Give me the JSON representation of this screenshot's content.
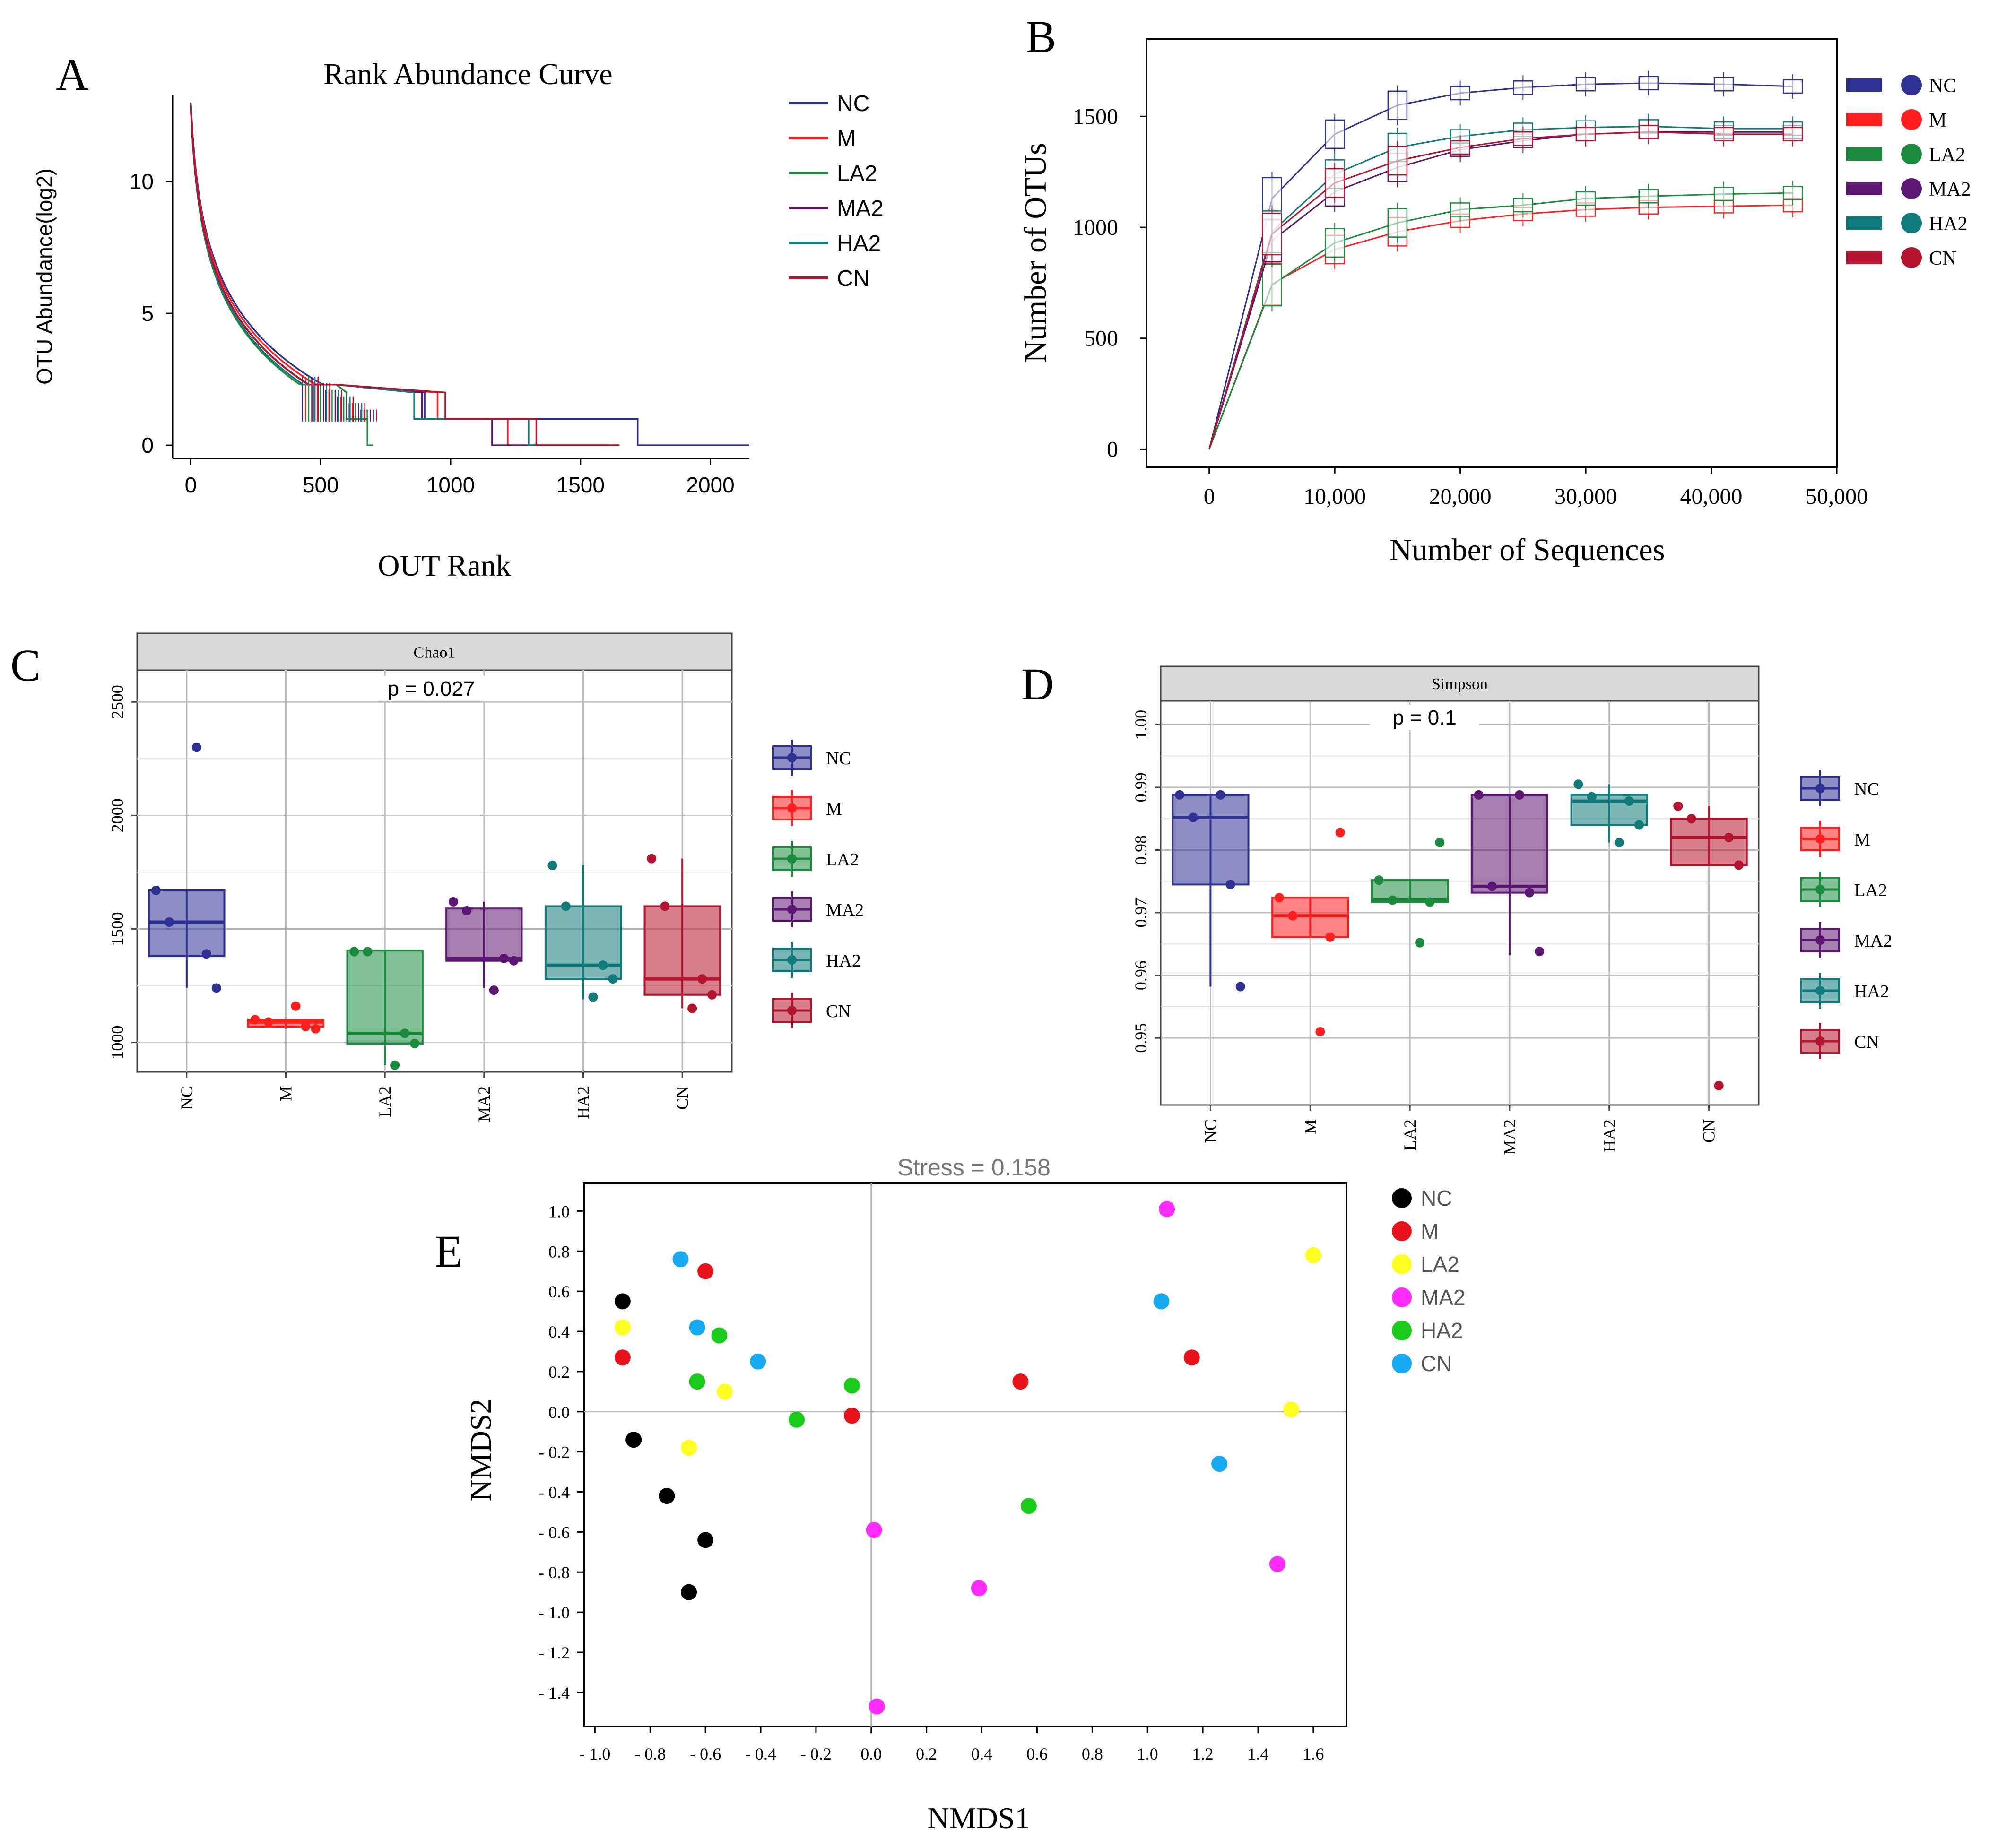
{
  "colors": {
    "NC": "#2e3192",
    "M": "#ff1f1f",
    "LA2": "#1a8a3c",
    "MA2": "#5a1670",
    "HA2": "#117a7a",
    "CN": "#b5142e",
    "e_NC": "#000000",
    "e_M": "#e8121b",
    "e_LA2": "#ffff22",
    "e_MA2": "#ff2cff",
    "e_HA2": "#19cc19",
    "e_CN": "#17aaf0"
  },
  "chart_data": [
    {
      "panel": "A",
      "type": "line",
      "title": "Rank Abundance Curve",
      "xlabel": "OUT Rank",
      "ylabel": "OTU Abundance(log2)",
      "xlim": [
        -70,
        2150
      ],
      "ylim": [
        -0.5,
        13.3
      ],
      "xticks": [
        "0",
        "500",
        "1000",
        "1500",
        "2000"
      ],
      "yticks": [
        "0",
        "5",
        "10"
      ],
      "legend": [
        "NC",
        "M",
        "LA2",
        "MA2",
        "HA2",
        "CN"
      ],
      "legend_position": "right",
      "series": [
        {
          "name": "NC",
          "end_rank": 2150,
          "step_ranks": [
            1720,
            1160,
            900
          ],
          "decay": 140
        },
        {
          "name": "M",
          "end_rank": 1650,
          "step_ranks": [
            1220,
            950
          ],
          "decay": 135
        },
        {
          "name": "LA2",
          "end_rank": 700,
          "step_ranks": [
            680,
            600
          ],
          "decay": 120
        },
        {
          "name": "MA2",
          "end_rank": 1600,
          "step_ranks": [
            1160,
            890
          ],
          "decay": 132
        },
        {
          "name": "HA2",
          "end_rank": 1330,
          "step_ranks": [
            1300,
            860
          ],
          "decay": 128
        },
        {
          "name": "CN",
          "end_rank": 1650,
          "step_ranks": [
            1330,
            980
          ],
          "decay": 136
        }
      ]
    },
    {
      "panel": "B",
      "type": "line",
      "title": "",
      "xlabel": "Number of Sequences",
      "ylabel": "Number of OTUs",
      "xlim": [
        -5000,
        50000
      ],
      "ylim": [
        -80,
        1850
      ],
      "xticks": [
        "0",
        "10,000",
        "20,000",
        "30,000",
        "40,000",
        "50,000"
      ],
      "yticks": [
        "0",
        "500",
        "1000",
        "1500"
      ],
      "x": [
        0,
        5000,
        10000,
        15000,
        20000,
        25000,
        30000,
        35000,
        41000,
        46500
      ],
      "legend": [
        "NC",
        "M",
        "LA2",
        "MA2",
        "HA2",
        "CN"
      ],
      "legend_position": "right",
      "series": [
        {
          "name": "NC",
          "values": [
            0,
            1130,
            1420,
            1550,
            1605,
            1630,
            1645,
            1650,
            1645,
            1635
          ]
        },
        {
          "name": "M",
          "values": [
            0,
            745,
            900,
            980,
            1030,
            1060,
            1080,
            1090,
            1095,
            1100
          ]
        },
        {
          "name": "LA2",
          "values": [
            0,
            740,
            930,
            1020,
            1080,
            1100,
            1130,
            1140,
            1150,
            1155
          ]
        },
        {
          "name": "MA2",
          "values": [
            0,
            940,
            1160,
            1270,
            1350,
            1390,
            1420,
            1430,
            1430,
            1430
          ]
        },
        {
          "name": "HA2",
          "values": [
            0,
            980,
            1240,
            1360,
            1410,
            1440,
            1450,
            1455,
            1445,
            1445
          ]
        },
        {
          "name": "CN",
          "values": [
            0,
            970,
            1200,
            1300,
            1360,
            1400,
            1420,
            1430,
            1420,
            1420
          ]
        }
      ]
    },
    {
      "panel": "C",
      "type": "box",
      "title": "Chao1",
      "annotation": "p = 0.027",
      "ylim": [
        870,
        2640
      ],
      "yticks": [
        "1000",
        "1500",
        "2000",
        "2500"
      ],
      "categories": [
        "NC",
        "M",
        "LA2",
        "MA2",
        "HA2",
        "CN"
      ],
      "boxes": [
        {
          "name": "NC",
          "q1": 1380,
          "median": 1530,
          "q3": 1670,
          "low": 1240,
          "high": 1670,
          "points": [
            1670,
            1530,
            1390,
            1240,
            2300
          ]
        },
        {
          "name": "M",
          "q1": 1070,
          "median": 1090,
          "q3": 1100,
          "low": 1060,
          "high": 1100,
          "points": [
            1100,
            1090,
            1070,
            1060,
            1160
          ]
        },
        {
          "name": "LA2",
          "q1": 995,
          "median": 1040,
          "q3": 1405,
          "low": 900,
          "high": 1405,
          "points": [
            1400,
            1400,
            1040,
            995,
            900
          ]
        },
        {
          "name": "MA2",
          "q1": 1360,
          "median": 1370,
          "q3": 1590,
          "low": 1240,
          "high": 1620,
          "points": [
            1620,
            1580,
            1370,
            1360,
            1230
          ]
        },
        {
          "name": "HA2",
          "q1": 1280,
          "median": 1340,
          "q3": 1600,
          "low": 1190,
          "high": 1780,
          "points": [
            1780,
            1600,
            1340,
            1280,
            1200
          ]
        },
        {
          "name": "CN",
          "q1": 1210,
          "median": 1280,
          "q3": 1600,
          "low": 1150,
          "high": 1810,
          "points": [
            1810,
            1600,
            1280,
            1210,
            1150
          ]
        }
      ]
    },
    {
      "panel": "D",
      "type": "box",
      "title": "Simpson",
      "annotation": "p = 0.1",
      "ylim": [
        0.9393,
        1.0038
      ],
      "yticks": [
        "0.95",
        "0.96",
        "0.97",
        "0.98",
        "0.99",
        "1.00"
      ],
      "categories": [
        "NC",
        "M",
        "LA2",
        "MA2",
        "HA2",
        "CN"
      ],
      "boxes": [
        {
          "name": "NC",
          "q1": 0.9745,
          "median": 0.9852,
          "q3": 0.9888,
          "low": 0.9582,
          "high": 0.9888,
          "points": [
            0.9888,
            0.9852,
            0.9745,
            0.9582,
            0.9888
          ]
        },
        {
          "name": "M",
          "q1": 0.9661,
          "median": 0.9695,
          "q3": 0.9724,
          "low": 0.9661,
          "high": 0.9724,
          "points": [
            0.9724,
            0.9695,
            0.9661,
            0.9828,
            0.951
          ]
        },
        {
          "name": "LA2",
          "q1": 0.9717,
          "median": 0.972,
          "q3": 0.9752,
          "low": 0.9717,
          "high": 0.9752,
          "points": [
            0.9752,
            0.972,
            0.9717,
            0.9812,
            0.9652
          ]
        },
        {
          "name": "MA2",
          "q1": 0.9732,
          "median": 0.9742,
          "q3": 0.9888,
          "low": 0.9632,
          "high": 0.9888,
          "points": [
            0.9888,
            0.9742,
            0.9732,
            0.9638,
            0.9888
          ]
        },
        {
          "name": "HA2",
          "q1": 0.984,
          "median": 0.9878,
          "q3": 0.9888,
          "low": 0.9812,
          "high": 0.9905,
          "points": [
            0.9905,
            0.9885,
            0.9878,
            0.984,
            0.9812
          ]
        },
        {
          "name": "CN",
          "q1": 0.9776,
          "median": 0.982,
          "q3": 0.985,
          "low": 0.9776,
          "high": 0.987,
          "points": [
            0.987,
            0.985,
            0.982,
            0.9776,
            0.9424
          ]
        }
      ]
    },
    {
      "panel": "E",
      "type": "scatter",
      "title": "Stress = 0.158",
      "xlabel": "NMDS1",
      "ylabel": "NMDS2",
      "xlim": [
        -1.04,
        1.72
      ],
      "ylim": [
        -1.57,
        1.14
      ],
      "xticks": [
        "- 1.0",
        "- 0.8",
        "- 0.6",
        "- 0.4",
        "- 0.2",
        "0.0",
        "0.2",
        "0.4",
        "0.6",
        "0.8",
        "1.0",
        "1.2",
        "1.4",
        "1.6"
      ],
      "yticks": [
        "1.0",
        "0.8",
        "0.6",
        "0.4",
        "0.2",
        "0.0",
        "- 0.2",
        "- 0.4",
        "- 0.6",
        "- 0.8",
        "- 1.0",
        "- 1.2",
        "- 1.4"
      ],
      "legend": [
        "NC",
        "M",
        "LA2",
        "MA2",
        "HA2",
        "CN"
      ],
      "legend_position": "right",
      "series": [
        {
          "name": "NC",
          "points": [
            [
              -0.9,
              0.55
            ],
            [
              -0.86,
              -0.14
            ],
            [
              -0.74,
              -0.42
            ],
            [
              -0.6,
              -0.64
            ],
            [
              -0.66,
              -0.9
            ]
          ]
        },
        {
          "name": "M",
          "points": [
            [
              -0.6,
              0.7
            ],
            [
              -0.9,
              0.27
            ],
            [
              -0.07,
              -0.02
            ],
            [
              0.54,
              0.15
            ],
            [
              1.16,
              0.27
            ]
          ]
        },
        {
          "name": "LA2",
          "points": [
            [
              -0.9,
              0.42
            ],
            [
              -0.53,
              0.1
            ],
            [
              -0.66,
              -0.18
            ],
            [
              1.52,
              0.01
            ],
            [
              1.6,
              0.78
            ]
          ]
        },
        {
          "name": "MA2",
          "points": [
            [
              1.07,
              1.01
            ],
            [
              0.01,
              -0.59
            ],
            [
              0.39,
              -0.88
            ],
            [
              1.47,
              -0.76
            ],
            [
              0.02,
              -1.47
            ]
          ]
        },
        {
          "name": "HA2",
          "points": [
            [
              -0.55,
              0.38
            ],
            [
              -0.63,
              0.15
            ],
            [
              -0.07,
              0.13
            ],
            [
              -0.27,
              -0.04
            ],
            [
              0.57,
              -0.47
            ]
          ]
        },
        {
          "name": "CN",
          "points": [
            [
              -0.69,
              0.76
            ],
            [
              -0.63,
              0.42
            ],
            [
              -0.41,
              0.25
            ],
            [
              1.05,
              0.55
            ],
            [
              1.26,
              -0.26
            ]
          ]
        }
      ]
    }
  ]
}
